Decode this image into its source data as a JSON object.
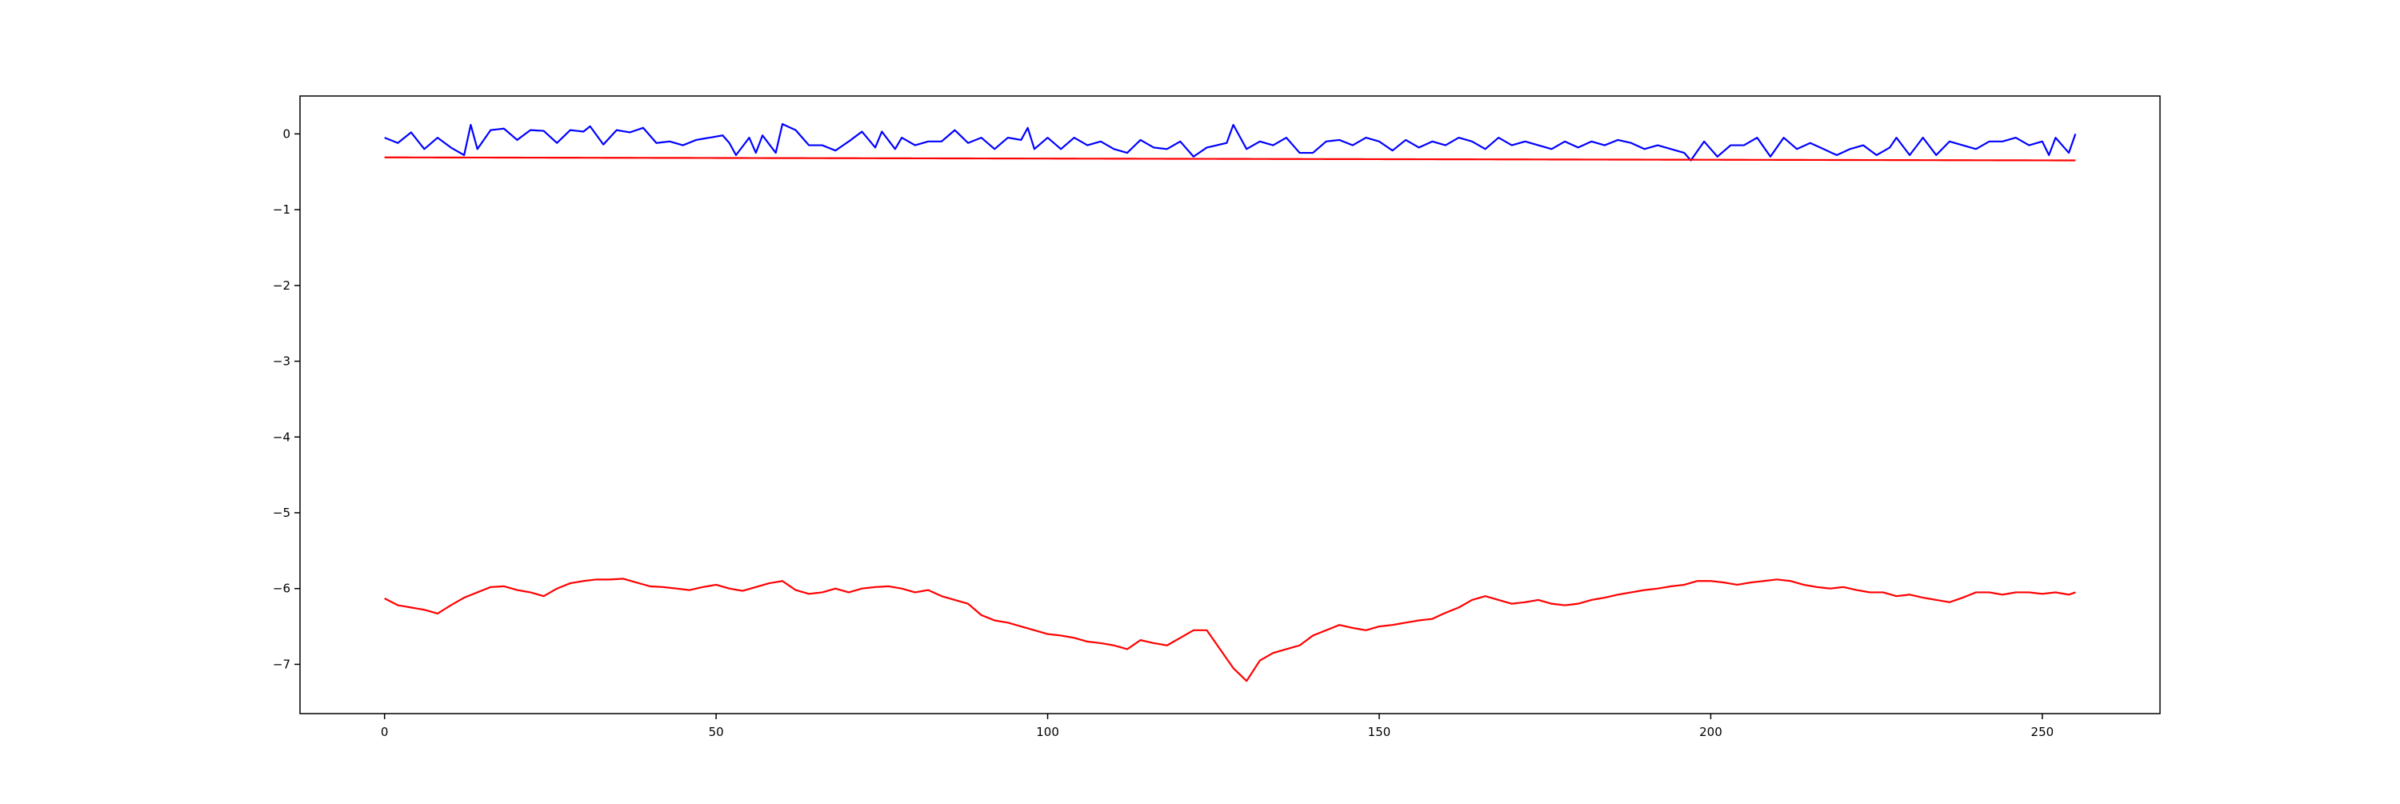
{
  "chart_data": {
    "type": "line",
    "title": "",
    "xlabel": "",
    "ylabel": "",
    "xlim": [
      -12.75,
      267.75
    ],
    "ylim": [
      -7.65,
      0.5
    ],
    "x_ticks": [
      0,
      50,
      100,
      150,
      200,
      250
    ],
    "y_ticks": [
      0,
      -1,
      -2,
      -3,
      -4,
      -5,
      -6,
      -7
    ],
    "x_tick_labels": [
      "0",
      "50",
      "100",
      "150",
      "200",
      "250"
    ],
    "y_tick_labels": [
      "0",
      "−1",
      "−2",
      "−3",
      "−4",
      "−5",
      "−6",
      "−7"
    ],
    "grid": false,
    "legend": "none",
    "x": {
      "start": 0,
      "end": 255,
      "step": 1
    },
    "series": [
      {
        "color": "#0000ff",
        "keypoints": [
          [
            0,
            -0.05
          ],
          [
            2,
            -0.12
          ],
          [
            4,
            0.02
          ],
          [
            6,
            -0.2
          ],
          [
            8,
            -0.05
          ],
          [
            10,
            -0.18
          ],
          [
            12,
            -0.28
          ],
          [
            13,
            0.12
          ],
          [
            14,
            -0.2
          ],
          [
            16,
            0.05
          ],
          [
            18,
            0.07
          ],
          [
            20,
            -0.08
          ],
          [
            22,
            0.05
          ],
          [
            24,
            0.04
          ],
          [
            26,
            -0.12
          ],
          [
            28,
            0.05
          ],
          [
            30,
            0.03
          ],
          [
            31,
            0.1
          ],
          [
            33,
            -0.14
          ],
          [
            35,
            0.05
          ],
          [
            37,
            0.02
          ],
          [
            39,
            0.08
          ],
          [
            41,
            -0.12
          ],
          [
            43,
            -0.1
          ],
          [
            45,
            -0.15
          ],
          [
            47,
            -0.08
          ],
          [
            49,
            -0.05
          ],
          [
            51,
            -0.02
          ],
          [
            52,
            -0.12
          ],
          [
            53,
            -0.28
          ],
          [
            55,
            -0.05
          ],
          [
            56,
            -0.25
          ],
          [
            57,
            -0.02
          ],
          [
            59,
            -0.25
          ],
          [
            60,
            0.13
          ],
          [
            62,
            0.05
          ],
          [
            64,
            -0.15
          ],
          [
            66,
            -0.15
          ],
          [
            68,
            -0.22
          ],
          [
            70,
            -0.1
          ],
          [
            72,
            0.03
          ],
          [
            74,
            -0.18
          ],
          [
            75,
            0.03
          ],
          [
            77,
            -0.2
          ],
          [
            78,
            -0.05
          ],
          [
            80,
            -0.15
          ],
          [
            82,
            -0.1
          ],
          [
            84,
            -0.1
          ],
          [
            86,
            0.05
          ],
          [
            88,
            -0.12
          ],
          [
            90,
            -0.05
          ],
          [
            92,
            -0.2
          ],
          [
            94,
            -0.05
          ],
          [
            96,
            -0.08
          ],
          [
            97,
            0.08
          ],
          [
            98,
            -0.2
          ],
          [
            100,
            -0.05
          ],
          [
            102,
            -0.2
          ],
          [
            104,
            -0.05
          ],
          [
            106,
            -0.15
          ],
          [
            108,
            -0.1
          ],
          [
            110,
            -0.2
          ],
          [
            112,
            -0.25
          ],
          [
            114,
            -0.08
          ],
          [
            116,
            -0.18
          ],
          [
            118,
            -0.2
          ],
          [
            120,
            -0.1
          ],
          [
            122,
            -0.3
          ],
          [
            124,
            -0.18
          ],
          [
            127,
            -0.12
          ],
          [
            128,
            0.12
          ],
          [
            130,
            -0.2
          ],
          [
            132,
            -0.1
          ],
          [
            134,
            -0.15
          ],
          [
            136,
            -0.05
          ],
          [
            138,
            -0.25
          ],
          [
            140,
            -0.25
          ],
          [
            142,
            -0.1
          ],
          [
            144,
            -0.08
          ],
          [
            146,
            -0.15
          ],
          [
            148,
            -0.05
          ],
          [
            150,
            -0.1
          ],
          [
            152,
            -0.22
          ],
          [
            154,
            -0.08
          ],
          [
            156,
            -0.18
          ],
          [
            158,
            -0.1
          ],
          [
            160,
            -0.15
          ],
          [
            162,
            -0.05
          ],
          [
            164,
            -0.1
          ],
          [
            166,
            -0.2
          ],
          [
            168,
            -0.05
          ],
          [
            170,
            -0.15
          ],
          [
            172,
            -0.1
          ],
          [
            174,
            -0.15
          ],
          [
            176,
            -0.2
          ],
          [
            178,
            -0.1
          ],
          [
            180,
            -0.18
          ],
          [
            182,
            -0.1
          ],
          [
            184,
            -0.15
          ],
          [
            186,
            -0.08
          ],
          [
            188,
            -0.12
          ],
          [
            190,
            -0.2
          ],
          [
            192,
            -0.15
          ],
          [
            194,
            -0.2
          ],
          [
            196,
            -0.25
          ],
          [
            197,
            -0.35
          ],
          [
            199,
            -0.1
          ],
          [
            201,
            -0.3
          ],
          [
            203,
            -0.15
          ],
          [
            205,
            -0.15
          ],
          [
            207,
            -0.05
          ],
          [
            209,
            -0.3
          ],
          [
            211,
            -0.05
          ],
          [
            213,
            -0.2
          ],
          [
            215,
            -0.12
          ],
          [
            217,
            -0.2
          ],
          [
            219,
            -0.28
          ],
          [
            221,
            -0.2
          ],
          [
            223,
            -0.15
          ],
          [
            225,
            -0.28
          ],
          [
            227,
            -0.18
          ],
          [
            228,
            -0.05
          ],
          [
            230,
            -0.28
          ],
          [
            232,
            -0.05
          ],
          [
            234,
            -0.28
          ],
          [
            236,
            -0.1
          ],
          [
            238,
            -0.15
          ],
          [
            240,
            -0.2
          ],
          [
            242,
            -0.1
          ],
          [
            244,
            -0.1
          ],
          [
            246,
            -0.05
          ],
          [
            248,
            -0.15
          ],
          [
            250,
            -0.1
          ],
          [
            251,
            -0.28
          ],
          [
            252,
            -0.05
          ],
          [
            254,
            -0.25
          ],
          [
            255,
            0.0
          ]
        ]
      },
      {
        "color": "#ff0000",
        "keypoints": [
          [
            0,
            -0.31
          ],
          [
            255,
            -0.35
          ]
        ]
      },
      {
        "color": "#ff0000",
        "keypoints": [
          [
            0,
            -6.13
          ],
          [
            2,
            -6.22
          ],
          [
            4,
            -6.25
          ],
          [
            6,
            -6.28
          ],
          [
            8,
            -6.33
          ],
          [
            10,
            -6.22
          ],
          [
            12,
            -6.12
          ],
          [
            14,
            -6.05
          ],
          [
            16,
            -5.98
          ],
          [
            18,
            -5.97
          ],
          [
            20,
            -6.02
          ],
          [
            22,
            -6.05
          ],
          [
            24,
            -6.1
          ],
          [
            26,
            -6.0
          ],
          [
            28,
            -5.93
          ],
          [
            30,
            -5.9
          ],
          [
            32,
            -5.88
          ],
          [
            34,
            -5.88
          ],
          [
            36,
            -5.87
          ],
          [
            38,
            -5.92
          ],
          [
            40,
            -5.97
          ],
          [
            42,
            -5.98
          ],
          [
            44,
            -6.0
          ],
          [
            46,
            -6.02
          ],
          [
            48,
            -5.98
          ],
          [
            50,
            -5.95
          ],
          [
            52,
            -6.0
          ],
          [
            54,
            -6.03
          ],
          [
            56,
            -5.98
          ],
          [
            58,
            -5.93
          ],
          [
            60,
            -5.9
          ],
          [
            62,
            -6.02
          ],
          [
            64,
            -6.07
          ],
          [
            66,
            -6.05
          ],
          [
            68,
            -6.0
          ],
          [
            70,
            -6.05
          ],
          [
            72,
            -6.0
          ],
          [
            74,
            -5.98
          ],
          [
            76,
            -5.97
          ],
          [
            78,
            -6.0
          ],
          [
            80,
            -6.05
          ],
          [
            82,
            -6.02
          ],
          [
            84,
            -6.1
          ],
          [
            86,
            -6.15
          ],
          [
            88,
            -6.2
          ],
          [
            90,
            -6.35
          ],
          [
            92,
            -6.42
          ],
          [
            94,
            -6.45
          ],
          [
            96,
            -6.5
          ],
          [
            98,
            -6.55
          ],
          [
            100,
            -6.6
          ],
          [
            102,
            -6.62
          ],
          [
            104,
            -6.65
          ],
          [
            106,
            -6.7
          ],
          [
            108,
            -6.72
          ],
          [
            110,
            -6.75
          ],
          [
            112,
            -6.8
          ],
          [
            114,
            -6.68
          ],
          [
            116,
            -6.72
          ],
          [
            118,
            -6.75
          ],
          [
            120,
            -6.65
          ],
          [
            122,
            -6.55
          ],
          [
            124,
            -6.55
          ],
          [
            126,
            -6.8
          ],
          [
            128,
            -7.05
          ],
          [
            130,
            -7.22
          ],
          [
            132,
            -6.95
          ],
          [
            134,
            -6.85
          ],
          [
            136,
            -6.8
          ],
          [
            138,
            -6.75
          ],
          [
            140,
            -6.62
          ],
          [
            142,
            -6.55
          ],
          [
            144,
            -6.48
          ],
          [
            146,
            -6.52
          ],
          [
            148,
            -6.55
          ],
          [
            150,
            -6.5
          ],
          [
            152,
            -6.48
          ],
          [
            154,
            -6.45
          ],
          [
            156,
            -6.42
          ],
          [
            158,
            -6.4
          ],
          [
            160,
            -6.32
          ],
          [
            162,
            -6.25
          ],
          [
            164,
            -6.15
          ],
          [
            166,
            -6.1
          ],
          [
            168,
            -6.15
          ],
          [
            170,
            -6.2
          ],
          [
            172,
            -6.18
          ],
          [
            174,
            -6.15
          ],
          [
            176,
            -6.2
          ],
          [
            178,
            -6.22
          ],
          [
            180,
            -6.2
          ],
          [
            182,
            -6.15
          ],
          [
            184,
            -6.12
          ],
          [
            186,
            -6.08
          ],
          [
            188,
            -6.05
          ],
          [
            190,
            -6.02
          ],
          [
            192,
            -6.0
          ],
          [
            194,
            -5.97
          ],
          [
            196,
            -5.95
          ],
          [
            198,
            -5.9
          ],
          [
            200,
            -5.9
          ],
          [
            202,
            -5.92
          ],
          [
            204,
            -5.95
          ],
          [
            206,
            -5.92
          ],
          [
            208,
            -5.9
          ],
          [
            210,
            -5.88
          ],
          [
            212,
            -5.9
          ],
          [
            214,
            -5.95
          ],
          [
            216,
            -5.98
          ],
          [
            218,
            -6.0
          ],
          [
            220,
            -5.98
          ],
          [
            222,
            -6.02
          ],
          [
            224,
            -6.05
          ],
          [
            226,
            -6.05
          ],
          [
            228,
            -6.1
          ],
          [
            230,
            -6.08
          ],
          [
            232,
            -6.12
          ],
          [
            234,
            -6.15
          ],
          [
            236,
            -6.18
          ],
          [
            238,
            -6.12
          ],
          [
            240,
            -6.05
          ],
          [
            242,
            -6.05
          ],
          [
            244,
            -6.08
          ],
          [
            246,
            -6.05
          ],
          [
            248,
            -6.05
          ],
          [
            250,
            -6.07
          ],
          [
            252,
            -6.05
          ],
          [
            254,
            -6.08
          ],
          [
            255,
            -6.05
          ]
        ]
      }
    ]
  }
}
